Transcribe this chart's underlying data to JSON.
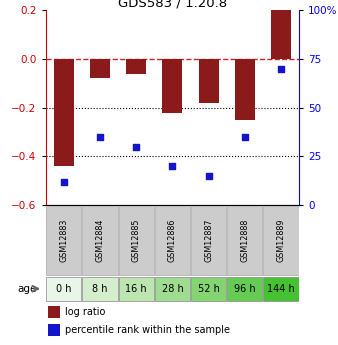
{
  "title": "GDS583 / 1.20.8",
  "samples": [
    "GSM12883",
    "GSM12884",
    "GSM12885",
    "GSM12886",
    "GSM12887",
    "GSM12888",
    "GSM12889"
  ],
  "ages": [
    "0 h",
    "8 h",
    "16 h",
    "28 h",
    "52 h",
    "96 h",
    "144 h"
  ],
  "log_ratio": [
    -0.44,
    -0.08,
    -0.06,
    -0.22,
    -0.18,
    -0.25,
    0.2
  ],
  "percentile_rank": [
    12,
    35,
    30,
    20,
    15,
    35,
    70
  ],
  "bar_color": "#8B1A1A",
  "dot_color": "#1414CC",
  "left_ylim": [
    -0.6,
    0.2
  ],
  "right_ylim": [
    0,
    100
  ],
  "left_yticks": [
    -0.6,
    -0.4,
    -0.2,
    0.0,
    0.2
  ],
  "right_yticks": [
    0,
    25,
    50,
    75,
    100
  ],
  "right_yticklabels": [
    "0",
    "25",
    "50",
    "75",
    "100%"
  ],
  "dotted_lines": [
    -0.2,
    -0.4
  ],
  "bar_width": 0.55,
  "age_colors": [
    "#e8f5e8",
    "#d4edcc",
    "#bcE5af",
    "#a0dc90",
    "#84d472",
    "#65cb52",
    "#44c232"
  ],
  "gsm_box_color": "#cccccc",
  "gsm_box_edge": "#aaaaaa",
  "age_box_edge": "#888888",
  "age_label": "age",
  "legend_items": [
    "log ratio",
    "percentile rank within the sample"
  ]
}
